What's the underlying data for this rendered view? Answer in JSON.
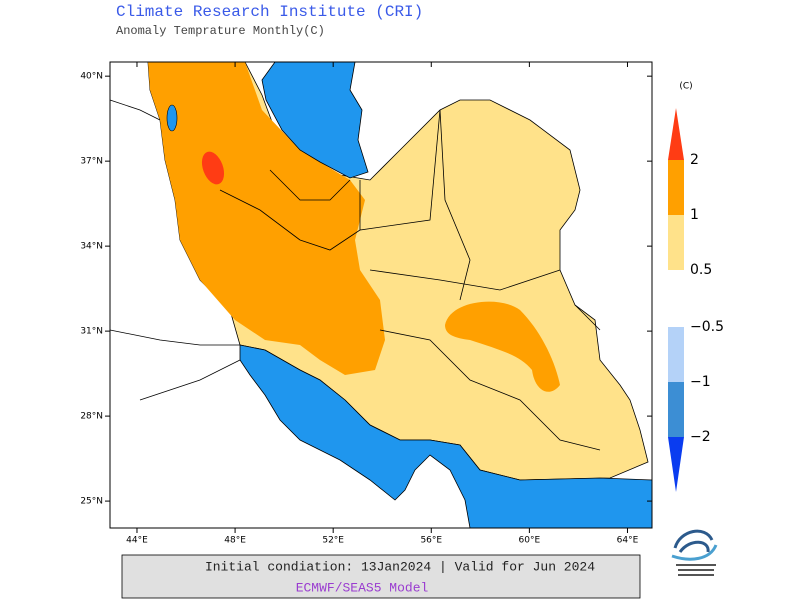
{
  "header": {
    "title": "Climate Research Institute (CRI)",
    "subtitle": "Anomaly Temprature Monthly(C)"
  },
  "map": {
    "lon_range": [
      42.9,
      65.0
    ],
    "lat_range": [
      24.05,
      40.5
    ],
    "lon_ticks": [
      {
        "value": 44,
        "label": "44°E"
      },
      {
        "value": 48,
        "label": "48°E"
      },
      {
        "value": 52,
        "label": "52°E"
      },
      {
        "value": 56,
        "label": "56°E"
      },
      {
        "value": 60,
        "label": "60°E"
      },
      {
        "value": 64,
        "label": "64°E"
      }
    ],
    "lat_ticks": [
      {
        "value": 40,
        "label": "40°N"
      },
      {
        "value": 37,
        "label": "37°N"
      },
      {
        "value": 34,
        "label": "34°N"
      },
      {
        "value": 31,
        "label": "31°N"
      },
      {
        "value": 28,
        "label": "28°N"
      },
      {
        "value": 25,
        "label": "25°N"
      }
    ]
  },
  "colorbar": {
    "unit": "(C)",
    "positive_ticks": [
      2,
      1,
      0.5
    ],
    "negative_ticks": [
      {
        "value": -0.5,
        "label": "−0.5"
      },
      {
        "value": -1,
        "label": "−1"
      },
      {
        "value": -2,
        "label": "−2"
      }
    ],
    "positive_colors": [
      "#ff3c14",
      "#ffa000",
      "#ffe28a"
    ],
    "negative_colors": [
      "#b4d2f8",
      "#3c8ed4",
      "#0a3cf0"
    ]
  },
  "footer": {
    "line1": "Initial condiation: 13Jan2024 | Valid for Jun 2024",
    "line2": "ECMWF/SEAS5 Model"
  }
}
